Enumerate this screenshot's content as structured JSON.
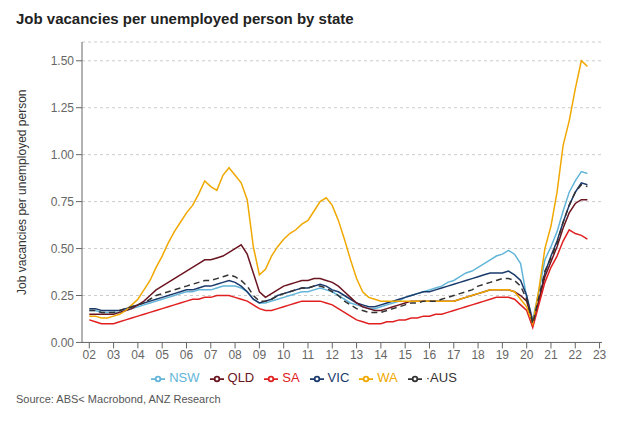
{
  "chart_data": {
    "type": "line",
    "title": "Job vacancies per unemployed person by state",
    "ylabel": "Job vacancies per unemployed person",
    "annotations": [
      "Source: ABS< Macrobond, ANZ Research"
    ],
    "x": [
      2002.0,
      2002.25,
      2002.5,
      2002.75,
      2003.0,
      2003.25,
      2003.5,
      2003.75,
      2004.0,
      2004.25,
      2004.5,
      2004.75,
      2005.0,
      2005.25,
      2005.5,
      2005.75,
      2006.0,
      2006.25,
      2006.5,
      2006.75,
      2007.0,
      2007.25,
      2007.5,
      2007.75,
      2008.0,
      2008.25,
      2008.5,
      2008.75,
      2009.0,
      2009.25,
      2009.5,
      2009.75,
      2010.0,
      2010.25,
      2010.5,
      2010.75,
      2011.0,
      2011.25,
      2011.5,
      2011.75,
      2012.0,
      2012.25,
      2012.5,
      2012.75,
      2013.0,
      2013.25,
      2013.5,
      2013.75,
      2014.0,
      2014.25,
      2014.5,
      2014.75,
      2015.0,
      2015.25,
      2015.5,
      2015.75,
      2016.0,
      2016.25,
      2016.5,
      2016.75,
      2017.0,
      2017.25,
      2017.5,
      2017.75,
      2018.0,
      2018.25,
      2018.5,
      2018.75,
      2019.0,
      2019.25,
      2019.5,
      2019.75,
      2020.0,
      2020.25,
      2020.5,
      2020.75,
      2021.0,
      2021.25,
      2021.5,
      2021.75,
      2022.0,
      2022.25,
      2022.5
    ],
    "series": [
      {
        "name": "NSW",
        "color": "#62b5d8",
        "line_style": "solid",
        "values": [
          0.17,
          0.17,
          0.16,
          0.16,
          0.16,
          0.16,
          0.17,
          0.18,
          0.19,
          0.2,
          0.21,
          0.22,
          0.23,
          0.24,
          0.25,
          0.26,
          0.27,
          0.27,
          0.28,
          0.28,
          0.28,
          0.29,
          0.3,
          0.3,
          0.3,
          0.29,
          0.27,
          0.23,
          0.21,
          0.21,
          0.22,
          0.23,
          0.24,
          0.25,
          0.26,
          0.27,
          0.27,
          0.28,
          0.29,
          0.28,
          0.27,
          0.25,
          0.23,
          0.21,
          0.2,
          0.19,
          0.18,
          0.18,
          0.19,
          0.2,
          0.21,
          0.22,
          0.24,
          0.25,
          0.26,
          0.27,
          0.28,
          0.29,
          0.3,
          0.32,
          0.33,
          0.35,
          0.37,
          0.38,
          0.4,
          0.42,
          0.44,
          0.46,
          0.47,
          0.49,
          0.47,
          0.42,
          0.24,
          0.12,
          0.27,
          0.44,
          0.51,
          0.59,
          0.7,
          0.8,
          0.86,
          0.91,
          0.9
        ]
      },
      {
        "name": "VIC",
        "color": "#1a3a6b",
        "line_style": "solid",
        "values": [
          0.18,
          0.18,
          0.17,
          0.17,
          0.17,
          0.17,
          0.18,
          0.19,
          0.2,
          0.21,
          0.22,
          0.23,
          0.24,
          0.25,
          0.26,
          0.27,
          0.28,
          0.28,
          0.29,
          0.3,
          0.3,
          0.31,
          0.32,
          0.33,
          0.32,
          0.3,
          0.27,
          0.23,
          0.21,
          0.22,
          0.23,
          0.25,
          0.26,
          0.27,
          0.28,
          0.29,
          0.29,
          0.3,
          0.31,
          0.3,
          0.28,
          0.27,
          0.25,
          0.23,
          0.21,
          0.2,
          0.19,
          0.19,
          0.2,
          0.21,
          0.22,
          0.23,
          0.24,
          0.25,
          0.26,
          0.27,
          0.27,
          0.28,
          0.29,
          0.3,
          0.31,
          0.32,
          0.33,
          0.34,
          0.35,
          0.36,
          0.37,
          0.37,
          0.37,
          0.38,
          0.36,
          0.33,
          0.25,
          0.11,
          0.22,
          0.37,
          0.46,
          0.54,
          0.64,
          0.73,
          0.8,
          0.85,
          0.84
        ]
      },
      {
        "name": "QLD",
        "color": "#6b1520",
        "line_style": "solid",
        "values": [
          0.15,
          0.15,
          0.15,
          0.15,
          0.15,
          0.16,
          0.17,
          0.18,
          0.2,
          0.22,
          0.25,
          0.28,
          0.3,
          0.32,
          0.34,
          0.36,
          0.38,
          0.4,
          0.42,
          0.44,
          0.44,
          0.45,
          0.46,
          0.48,
          0.5,
          0.52,
          0.47,
          0.37,
          0.27,
          0.24,
          0.26,
          0.28,
          0.3,
          0.31,
          0.32,
          0.33,
          0.33,
          0.34,
          0.34,
          0.33,
          0.32,
          0.3,
          0.27,
          0.24,
          0.21,
          0.19,
          0.18,
          0.17,
          0.17,
          0.18,
          0.19,
          0.2,
          0.21,
          0.22,
          0.22,
          0.22,
          0.22,
          0.22,
          0.22,
          0.22,
          0.22,
          0.23,
          0.24,
          0.25,
          0.26,
          0.27,
          0.28,
          0.28,
          0.28,
          0.28,
          0.27,
          0.25,
          0.22,
          0.1,
          0.22,
          0.35,
          0.43,
          0.51,
          0.61,
          0.69,
          0.74,
          0.76,
          0.76
        ]
      },
      {
        "name": "SA",
        "color": "#e02020",
        "line_style": "solid",
        "values": [
          0.12,
          0.11,
          0.1,
          0.1,
          0.1,
          0.11,
          0.12,
          0.13,
          0.14,
          0.15,
          0.16,
          0.17,
          0.18,
          0.19,
          0.2,
          0.21,
          0.22,
          0.23,
          0.23,
          0.24,
          0.24,
          0.25,
          0.25,
          0.25,
          0.24,
          0.23,
          0.22,
          0.2,
          0.18,
          0.17,
          0.17,
          0.18,
          0.19,
          0.2,
          0.21,
          0.22,
          0.22,
          0.22,
          0.22,
          0.21,
          0.2,
          0.18,
          0.16,
          0.14,
          0.12,
          0.11,
          0.1,
          0.1,
          0.1,
          0.11,
          0.11,
          0.12,
          0.12,
          0.13,
          0.13,
          0.14,
          0.14,
          0.15,
          0.15,
          0.16,
          0.17,
          0.18,
          0.19,
          0.2,
          0.21,
          0.22,
          0.23,
          0.24,
          0.24,
          0.24,
          0.23,
          0.2,
          0.17,
          0.08,
          0.2,
          0.32,
          0.4,
          0.46,
          0.54,
          0.6,
          0.58,
          0.57,
          0.55
        ]
      },
      {
        "name": "WA",
        "color": "#f0a800",
        "line_style": "solid",
        "values": [
          0.14,
          0.14,
          0.13,
          0.13,
          0.14,
          0.15,
          0.17,
          0.2,
          0.23,
          0.28,
          0.33,
          0.4,
          0.46,
          0.53,
          0.59,
          0.64,
          0.69,
          0.73,
          0.79,
          0.86,
          0.83,
          0.81,
          0.89,
          0.93,
          0.89,
          0.85,
          0.76,
          0.51,
          0.36,
          0.39,
          0.46,
          0.51,
          0.55,
          0.58,
          0.6,
          0.63,
          0.65,
          0.7,
          0.75,
          0.77,
          0.73,
          0.65,
          0.55,
          0.44,
          0.34,
          0.27,
          0.24,
          0.23,
          0.22,
          0.22,
          0.22,
          0.22,
          0.22,
          0.22,
          0.22,
          0.22,
          0.22,
          0.22,
          0.22,
          0.22,
          0.22,
          0.23,
          0.24,
          0.25,
          0.26,
          0.27,
          0.28,
          0.28,
          0.28,
          0.28,
          0.27,
          0.23,
          0.19,
          0.1,
          0.28,
          0.5,
          0.62,
          0.8,
          1.05,
          1.18,
          1.35,
          1.5,
          1.47
        ]
      },
      {
        "name": "·AUS",
        "color": "#333333",
        "line_style": "dashed",
        "values": [
          0.17,
          0.17,
          0.16,
          0.16,
          0.16,
          0.17,
          0.18,
          0.19,
          0.2,
          0.21,
          0.23,
          0.25,
          0.26,
          0.27,
          0.28,
          0.29,
          0.3,
          0.31,
          0.32,
          0.33,
          0.33,
          0.34,
          0.35,
          0.36,
          0.35,
          0.33,
          0.3,
          0.25,
          0.22,
          0.22,
          0.23,
          0.25,
          0.26,
          0.27,
          0.28,
          0.29,
          0.29,
          0.3,
          0.3,
          0.29,
          0.27,
          0.25,
          0.22,
          0.2,
          0.18,
          0.17,
          0.16,
          0.16,
          0.16,
          0.17,
          0.18,
          0.19,
          0.2,
          0.21,
          0.21,
          0.22,
          0.22,
          0.22,
          0.23,
          0.24,
          0.25,
          0.26,
          0.27,
          0.28,
          0.3,
          0.31,
          0.32,
          0.33,
          0.34,
          0.34,
          0.33,
          0.3,
          0.23,
          0.1,
          0.24,
          0.38,
          0.45,
          0.53,
          0.64,
          0.73,
          0.8,
          0.84,
          0.83
        ]
      }
    ],
    "xlim": [
      2001.7,
      2023.1
    ],
    "xticks": [
      {
        "value": 2002,
        "label": "02"
      },
      {
        "value": 2003,
        "label": "03"
      },
      {
        "value": 2004,
        "label": "04"
      },
      {
        "value": 2005,
        "label": "05"
      },
      {
        "value": 2006,
        "label": "06"
      },
      {
        "value": 2007,
        "label": "07"
      },
      {
        "value": 2008,
        "label": "08"
      },
      {
        "value": 2009,
        "label": "09"
      },
      {
        "value": 2010,
        "label": "10"
      },
      {
        "value": 2011,
        "label": "11"
      },
      {
        "value": 2012,
        "label": "12"
      },
      {
        "value": 2013,
        "label": "13"
      },
      {
        "value": 2014,
        "label": "14"
      },
      {
        "value": 2015,
        "label": "15"
      },
      {
        "value": 2016,
        "label": "16"
      },
      {
        "value": 2017,
        "label": "17"
      },
      {
        "value": 2018,
        "label": "18"
      },
      {
        "value": 2019,
        "label": "19"
      },
      {
        "value": 2020,
        "label": "20"
      },
      {
        "value": 2021,
        "label": "21"
      },
      {
        "value": 2022,
        "label": "22"
      },
      {
        "value": 2023,
        "label": "23"
      }
    ],
    "ylim": [
      0.0,
      1.6
    ],
    "yticks": [
      {
        "value": 0.0,
        "label": "0.00"
      },
      {
        "value": 0.25,
        "label": "0.25"
      },
      {
        "value": 0.5,
        "label": "0.50"
      },
      {
        "value": 0.75,
        "label": "0.75"
      },
      {
        "value": 1.0,
        "label": "1.00"
      },
      {
        "value": 1.25,
        "label": "1.25"
      },
      {
        "value": 1.5,
        "label": "1.50"
      }
    ],
    "grid": true,
    "legend": "bottom"
  }
}
